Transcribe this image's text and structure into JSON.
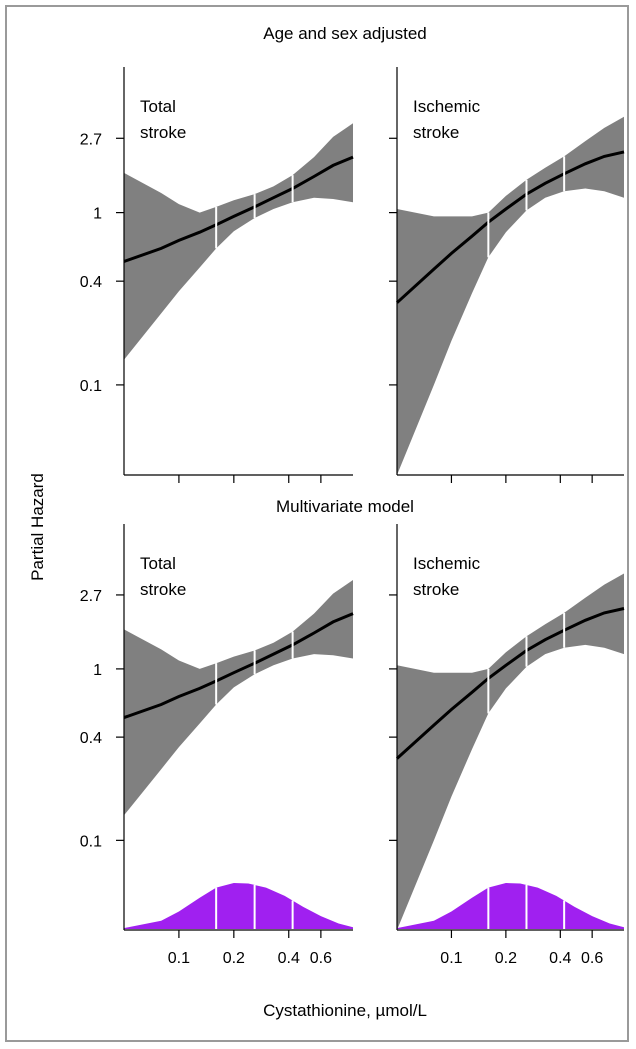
{
  "chart_data": {
    "type": "line",
    "ylabel": "Partial Hazard",
    "xlabel": "Cystathionine, µmol/L",
    "xscale": "log",
    "yscale": "log",
    "x_ticks": [
      "0.1",
      "0.2",
      "0.4",
      "0.6"
    ],
    "y_ticks": [
      "2.7",
      "1",
      "0.4",
      "0.1"
    ],
    "colors": {
      "ci_band": "#808080",
      "curve": "#000000",
      "density": "#a020f0",
      "quantile_lines": "#ffffff"
    },
    "quantile_cuts": [
      0.16,
      0.26,
      0.42
    ],
    "rows": [
      {
        "title": "Age and sex adjusted",
        "panels": [
          {
            "label_line1": "Total",
            "label_line2": "stroke",
            "x": [
              0.05,
              0.08,
              0.1,
              0.13,
              0.16,
              0.2,
              0.26,
              0.33,
              0.42,
              0.55,
              0.7,
              0.9
            ],
            "y": [
              0.52,
              0.62,
              0.69,
              0.77,
              0.85,
              0.95,
              1.08,
              1.22,
              1.38,
              1.62,
              1.88,
              2.1
            ],
            "lower": [
              0.14,
              0.26,
              0.35,
              0.48,
              0.62,
              0.78,
              0.93,
              1.05,
              1.15,
              1.22,
              1.2,
              1.15
            ],
            "upper": [
              1.7,
              1.3,
              1.12,
              1.0,
              1.08,
              1.18,
              1.28,
              1.42,
              1.65,
              2.1,
              2.75,
              3.3
            ],
            "density": false
          },
          {
            "label_line1": "Ischemic",
            "label_line2": "stroke",
            "x": [
              0.05,
              0.08,
              0.1,
              0.13,
              0.16,
              0.2,
              0.26,
              0.33,
              0.42,
              0.55,
              0.7,
              0.9
            ],
            "y": [
              0.3,
              0.47,
              0.58,
              0.73,
              0.88,
              1.05,
              1.28,
              1.48,
              1.68,
              1.92,
              2.12,
              2.25
            ],
            "lower": [
              0.03,
              0.1,
              0.18,
              0.34,
              0.55,
              0.77,
              1.03,
              1.22,
              1.33,
              1.38,
              1.33,
              1.22
            ],
            "upper": [
              1.05,
              0.95,
              0.95,
              0.95,
              1.0,
              1.25,
              1.55,
              1.82,
              2.12,
              2.6,
              3.1,
              3.6
            ],
            "density": false
          }
        ]
      },
      {
        "title": "Multivariate model",
        "panels": [
          {
            "label_line1": "Total",
            "label_line2": "stroke",
            "x": [
              0.05,
              0.08,
              0.1,
              0.13,
              0.16,
              0.2,
              0.26,
              0.33,
              0.42,
              0.55,
              0.7,
              0.9
            ],
            "y": [
              0.52,
              0.62,
              0.69,
              0.77,
              0.85,
              0.95,
              1.08,
              1.22,
              1.38,
              1.62,
              1.88,
              2.1
            ],
            "lower": [
              0.14,
              0.26,
              0.35,
              0.48,
              0.62,
              0.78,
              0.93,
              1.05,
              1.15,
              1.22,
              1.2,
              1.15
            ],
            "upper": [
              1.7,
              1.3,
              1.12,
              1.0,
              1.08,
              1.18,
              1.28,
              1.42,
              1.65,
              2.1,
              2.75,
              3.3
            ],
            "density": true
          },
          {
            "label_line1": "Ischemic",
            "label_line2": "stroke",
            "x": [
              0.05,
              0.08,
              0.1,
              0.13,
              0.16,
              0.2,
              0.26,
              0.33,
              0.42,
              0.55,
              0.7,
              0.9
            ],
            "y": [
              0.3,
              0.47,
              0.58,
              0.73,
              0.88,
              1.05,
              1.28,
              1.48,
              1.68,
              1.92,
              2.12,
              2.25
            ],
            "lower": [
              0.03,
              0.1,
              0.18,
              0.34,
              0.55,
              0.77,
              1.03,
              1.22,
              1.33,
              1.38,
              1.33,
              1.22
            ],
            "upper": [
              1.05,
              0.95,
              0.95,
              0.95,
              1.0,
              1.25,
              1.55,
              1.82,
              2.12,
              2.6,
              3.1,
              3.6
            ],
            "density": true
          }
        ]
      }
    ],
    "density_curve": {
      "x": [
        0.05,
        0.08,
        0.1,
        0.13,
        0.16,
        0.2,
        0.24,
        0.3,
        0.38,
        0.48,
        0.6,
        0.75,
        0.9
      ],
      "y": [
        0.02,
        0.18,
        0.38,
        0.68,
        0.9,
        1.0,
        0.99,
        0.9,
        0.72,
        0.48,
        0.28,
        0.12,
        0.04
      ]
    }
  }
}
